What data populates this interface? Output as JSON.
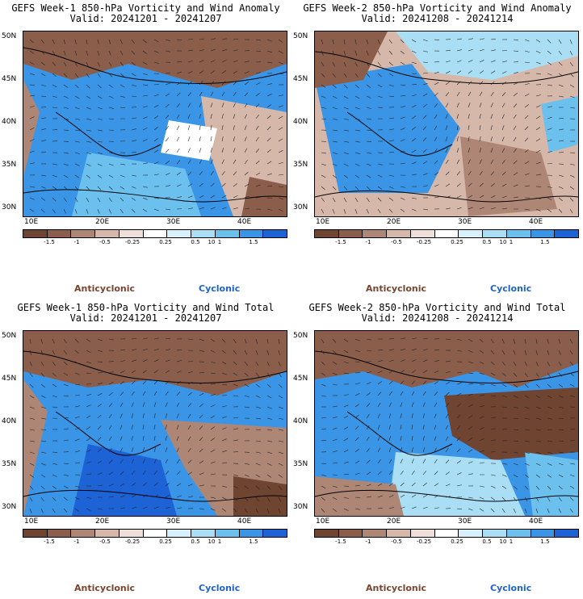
{
  "panels": [
    {
      "id": "p1",
      "title1": "GEFS Week-1 850-hPa Vorticity and Wind Anomaly",
      "title2": "Valid: 20241201 - 20241207"
    },
    {
      "id": "p2",
      "title1": "GEFS Week-2 850-hPa Vorticity and Wind Anomaly",
      "title2": "Valid: 20241208 - 20241214"
    },
    {
      "id": "p3",
      "title1": "GEFS Week-1 850-hPa Vorticity and Wind Total",
      "title2": "Valid: 20241201 - 20241207"
    },
    {
      "id": "p4",
      "title1": "GEFS Week-2 850-hPa Vorticity and Wind Total",
      "title2": "Valid: 20241208 - 20241214"
    }
  ],
  "lat_labels": [
    "50N",
    "45N",
    "40N",
    "35N",
    "30N"
  ],
  "lon_labels": [
    "10E",
    "20E",
    "30E",
    "40E"
  ],
  "colorbar": {
    "labels": [
      "-1.5",
      "-1",
      "-0.5",
      "-0.25",
      "0.25",
      "0.5",
      "1",
      "1.5"
    ],
    "exponent": "10",
    "colors": [
      "#6f4430",
      "#8b5e4b",
      "#ae8676",
      "#d6b8aa",
      "#eee0d8",
      "#ffffff",
      "#d8f0fb",
      "#a9def5",
      "#6cc0ee",
      "#3b95e6",
      "#1e63d6"
    ]
  },
  "legend": {
    "anticyclonic": "Anticyclonic",
    "cyclonic": "Cyclonic"
  }
}
